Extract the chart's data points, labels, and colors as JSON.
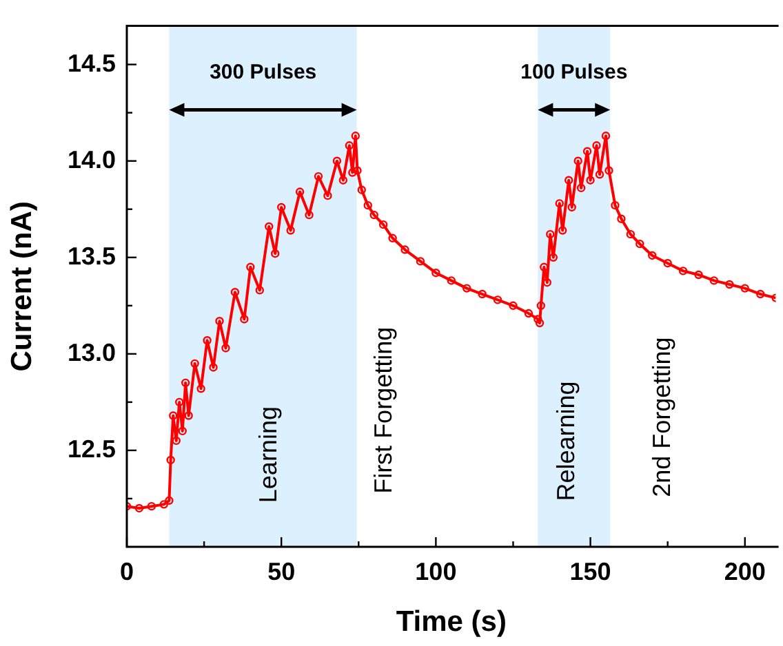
{
  "chart_data": {
    "type": "line",
    "xlabel": "Time (s)",
    "ylabel": "Current (nA)",
    "xlim": [
      0,
      210
    ],
    "ylim": [
      12.0,
      14.7
    ],
    "xticks": [
      0,
      {
        "value": 25,
        "label": null
      },
      50,
      {
        "value": 75,
        "label": null
      },
      100,
      {
        "value": 125,
        "label": null
      },
      150,
      {
        "value": 175,
        "label": null
      },
      200
    ],
    "yticks": [
      {
        "value": 12.25,
        "label": null
      },
      12.5,
      {
        "value": 12.75,
        "label": null
      },
      {
        "value": 13,
        "label": "13.0"
      },
      {
        "value": 13.25,
        "label": null
      },
      13.5,
      {
        "value": 13.75,
        "label": null
      },
      {
        "value": 14,
        "label": "14.0"
      },
      {
        "value": 14.25,
        "label": null
      },
      14.5
    ],
    "grid": false,
    "legend": false,
    "marker": "circle",
    "line_style": "solid",
    "bands": [
      {
        "axis": "x",
        "from": 13.7,
        "to": 74.4,
        "color": "#ddf0fd"
      },
      {
        "axis": "x",
        "from": 133,
        "to": 156.4,
        "color": "#ddf0fd"
      }
    ],
    "annotations": [
      "300 Pulses",
      "100 Pulses",
      "Learning",
      "First Forgetting",
      "Relearning",
      "2nd Forgetting"
    ],
    "series": [
      {
        "color": "#ff0000",
        "x": [
          0,
          4,
          8,
          12,
          13.7,
          14.2,
          15,
          16,
          17,
          18,
          19,
          20,
          22,
          24,
          26,
          28,
          30,
          32,
          35,
          38,
          40,
          43,
          46,
          48,
          50,
          53,
          56,
          59,
          62,
          65,
          68,
          70,
          72,
          73,
          74,
          74.6,
          76,
          78,
          80,
          83,
          86,
          90,
          95,
          100,
          105,
          110,
          115,
          120,
          125,
          130,
          133,
          133.6,
          134,
          135,
          136,
          137,
          138,
          140,
          141,
          143,
          144,
          146,
          147,
          149,
          150,
          152,
          153,
          155,
          156,
          158,
          160,
          163,
          166,
          170,
          175,
          180,
          185,
          190,
          195,
          200,
          205,
          210
        ],
        "values": [
          12.21,
          12.2,
          12.21,
          12.22,
          12.24,
          12.45,
          12.68,
          12.55,
          12.75,
          12.6,
          12.85,
          12.68,
          12.95,
          12.82,
          13.07,
          12.93,
          13.17,
          13.03,
          13.32,
          13.18,
          13.45,
          13.33,
          13.66,
          13.52,
          13.76,
          13.64,
          13.84,
          13.72,
          13.92,
          13.82,
          14.0,
          13.9,
          14.08,
          13.94,
          14.13,
          13.95,
          13.85,
          13.77,
          13.72,
          13.67,
          13.6,
          13.54,
          13.48,
          13.42,
          13.38,
          13.34,
          13.31,
          13.28,
          13.25,
          13.21,
          13.18,
          13.16,
          13.25,
          13.45,
          13.37,
          13.62,
          13.5,
          13.78,
          13.64,
          13.9,
          13.76,
          14.0,
          13.86,
          14.05,
          13.9,
          14.08,
          13.93,
          14.13,
          13.95,
          13.77,
          13.7,
          13.62,
          13.57,
          13.51,
          13.47,
          13.43,
          13.41,
          13.38,
          13.36,
          13.34,
          13.31,
          13.29
        ]
      }
    ]
  }
}
